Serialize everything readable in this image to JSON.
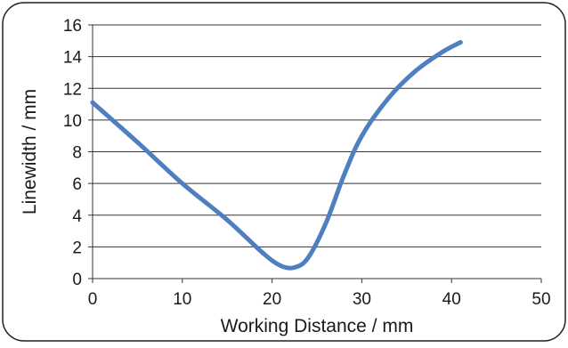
{
  "chart_data": {
    "type": "line",
    "title": "",
    "xlabel": "Working Distance / mm",
    "ylabel": "Linewidth / mm",
    "xlim": [
      0,
      50
    ],
    "ylim": [
      0,
      16
    ],
    "x_ticks": [
      "0",
      "10",
      "20",
      "30",
      "40",
      "50"
    ],
    "y_ticks": [
      "0",
      "2",
      "4",
      "6",
      "8",
      "10",
      "12",
      "14",
      "16"
    ],
    "grid": "horizontal",
    "legend": "none",
    "series": [
      {
        "color": "#4F7FC0",
        "x": [
          0,
          5,
          10,
          15,
          19,
          21,
          22.5,
          24,
          26,
          28,
          30,
          33,
          36,
          39,
          41
        ],
        "y": [
          11.1,
          8.6,
          6.0,
          3.7,
          1.6,
          0.8,
          0.7,
          1.3,
          3.5,
          6.5,
          9.0,
          11.4,
          13.1,
          14.3,
          14.9
        ]
      }
    ]
  }
}
